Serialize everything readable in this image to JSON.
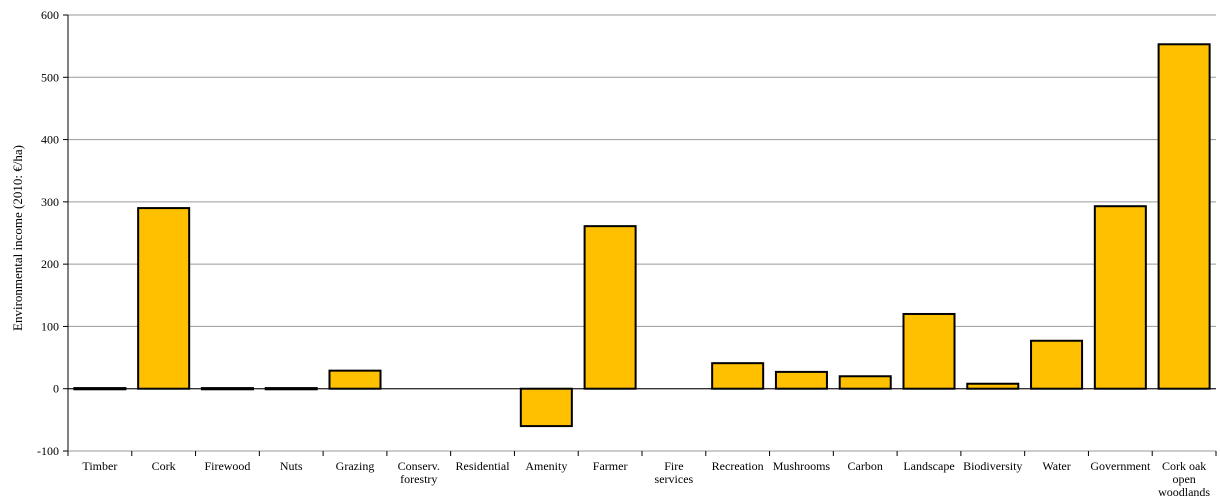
{
  "chart_data": {
    "type": "bar",
    "categories": [
      [
        "Timber"
      ],
      [
        "Cork"
      ],
      [
        "Firewood"
      ],
      [
        "Nuts"
      ],
      [
        "Grazing"
      ],
      [
        "Conserv.",
        "forestry"
      ],
      [
        "Residential"
      ],
      [
        "Amenity"
      ],
      [
        "Farmer"
      ],
      [
        "Fire",
        "services"
      ],
      [
        "Recreation"
      ],
      [
        "Mushrooms"
      ],
      [
        "Carbon"
      ],
      [
        "Landscape"
      ],
      [
        "Biodiversity"
      ],
      [
        "Water"
      ],
      [
        "Government"
      ],
      [
        "Cork oak",
        "open",
        "woodlands"
      ]
    ],
    "values": [
      1,
      290,
      1,
      1,
      29,
      0,
      0,
      -60,
      261,
      0,
      41,
      27,
      20,
      120,
      8,
      77,
      293,
      553
    ],
    "ylabel": "Environmental income (2010: €/ha)",
    "ylim": [
      -100,
      600
    ],
    "yticks": [
      -100,
      0,
      100,
      200,
      300,
      400,
      500,
      600
    ],
    "grid": true,
    "bar_color": "#FFC000",
    "bar_edge_color": "#000000"
  }
}
